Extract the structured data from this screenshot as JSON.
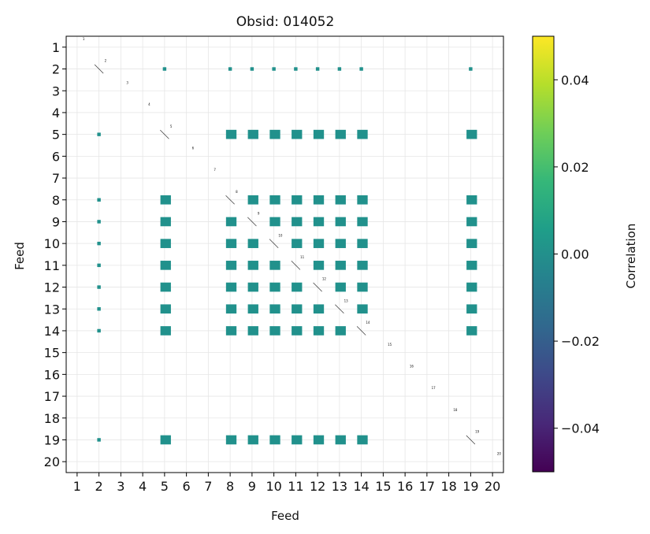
{
  "chart_data": {
    "type": "heatmap",
    "title": "Obsid: 014052",
    "xlabel": "Feed",
    "ylabel": "Feed",
    "x_ticks": [
      "1",
      "2",
      "3",
      "4",
      "5",
      "6",
      "7",
      "8",
      "9",
      "10",
      "11",
      "12",
      "13",
      "14",
      "15",
      "16",
      "17",
      "18",
      "19",
      "20"
    ],
    "y_ticks": [
      "1",
      "2",
      "3",
      "4",
      "5",
      "6",
      "7",
      "8",
      "9",
      "10",
      "11",
      "12",
      "13",
      "14",
      "15",
      "16",
      "17",
      "18",
      "19",
      "20"
    ],
    "diagonal_labels": [
      "1",
      "2",
      "3",
      "4",
      "5",
      "6",
      "7",
      "8",
      "9",
      "10",
      "11",
      "12",
      "13",
      "14",
      "15",
      "16",
      "17",
      "18",
      "19",
      "20"
    ],
    "grid": true,
    "active_feeds": [
      2,
      5,
      8,
      9,
      10,
      11,
      12,
      13,
      14,
      19
    ],
    "dense_feeds": [
      5,
      8,
      9,
      10,
      11,
      12,
      13,
      14,
      19
    ],
    "sparse_feeds": [
      2
    ],
    "cell_value": 0.0,
    "colorbar": {
      "label": "Correlation",
      "vmin": -0.05,
      "vmax": 0.05,
      "ticks": [
        -0.04,
        -0.02,
        0.0,
        0.02,
        0.04
      ],
      "tick_labels": [
        "−0.04",
        "−0.02",
        "0.00",
        "0.02",
        "0.04"
      ],
      "colormap": [
        "#440154",
        "#482878",
        "#3e4989",
        "#31688e",
        "#26828e",
        "#1f9e89",
        "#35b779",
        "#6ece58",
        "#b5de2b",
        "#fde725"
      ]
    },
    "cell_color": "#21918c"
  }
}
